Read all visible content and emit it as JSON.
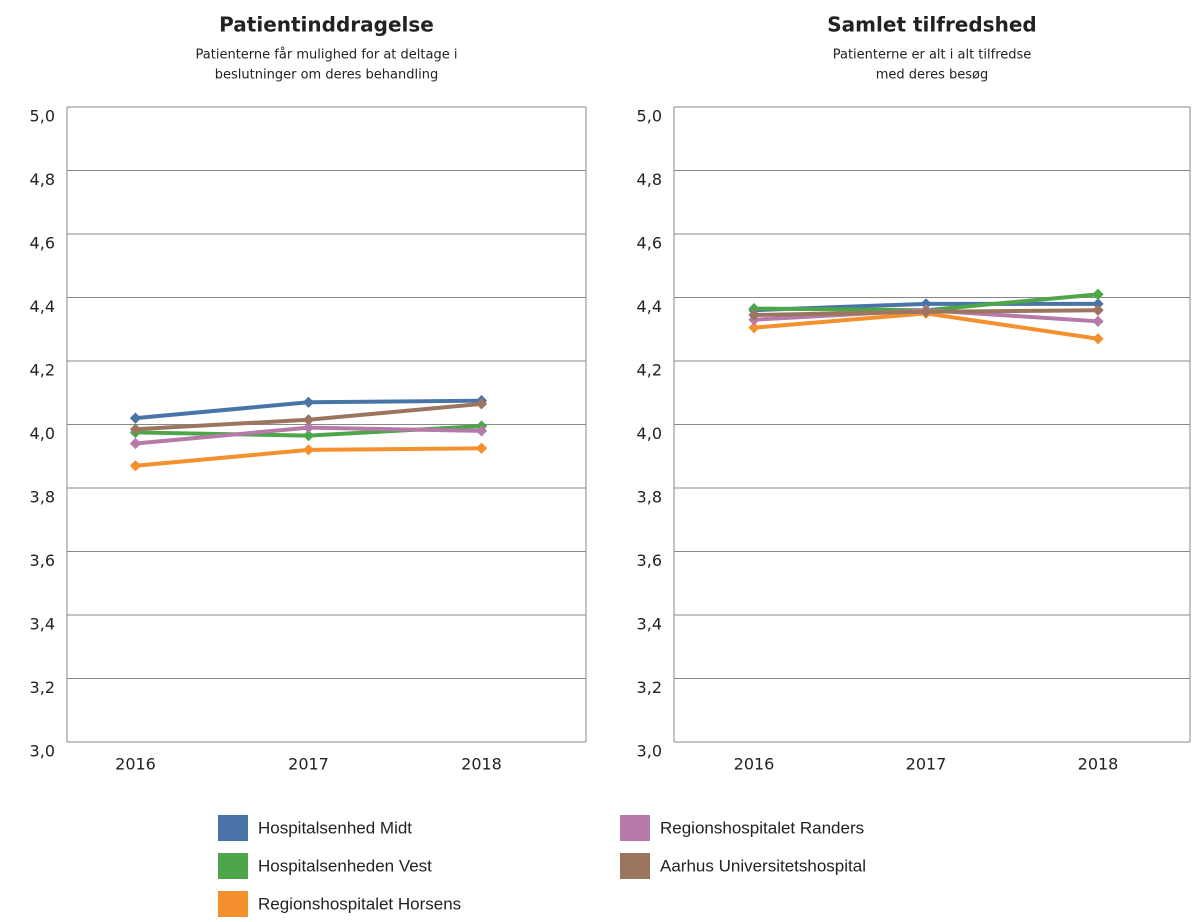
{
  "chart_data": [
    {
      "type": "line",
      "title": "Patientinddragelse",
      "subtitle": [
        "Patienterne får mulighed for at deltage i",
        "beslutninger om deres behandling"
      ],
      "categories": [
        "2016",
        "2017",
        "2018"
      ],
      "ylim": [
        3.0,
        5.0
      ],
      "yticks": [
        {
          "value": 3.0,
          "label": "3,0"
        },
        {
          "value": 3.2,
          "label": "3,2"
        },
        {
          "value": 3.4,
          "label": "3,4"
        },
        {
          "value": 3.6,
          "label": "3,6"
        },
        {
          "value": 3.8,
          "label": "3,8"
        },
        {
          "value": 4.0,
          "label": "4,0"
        },
        {
          "value": 4.2,
          "label": "4,2"
        },
        {
          "value": 4.4,
          "label": "4,4"
        },
        {
          "value": 4.6,
          "label": "4,6"
        },
        {
          "value": 4.8,
          "label": "4,8"
        },
        {
          "value": 5.0,
          "label": "5,0"
        }
      ],
      "grid": true,
      "series": [
        {
          "name": "Hospitalsenhed Midt",
          "color": "#4a74a8",
          "values": [
            4.02,
            4.07,
            4.075
          ]
        },
        {
          "name": "Hospitalsenheden Vest",
          "color": "#4ea64a",
          "values": [
            3.975,
            3.965,
            3.995
          ]
        },
        {
          "name": "Regionshospitalet Horsens",
          "color": "#f4912e",
          "values": [
            3.87,
            3.92,
            3.925
          ]
        },
        {
          "name": "Regionshospitalet Randers",
          "color": "#b57aa8",
          "values": [
            3.94,
            3.99,
            3.98
          ]
        },
        {
          "name": "Aarhus Universitetshospital",
          "color": "#9c7560",
          "values": [
            3.985,
            4.015,
            4.065
          ]
        }
      ]
    },
    {
      "type": "line",
      "title": "Samlet tilfredshed",
      "subtitle": [
        "Patienterne er alt i alt tilfredse",
        "med deres besøg"
      ],
      "categories": [
        "2016",
        "2017",
        "2018"
      ],
      "ylim": [
        3.0,
        5.0
      ],
      "yticks": [
        {
          "value": 3.0,
          "label": "3,0"
        },
        {
          "value": 3.2,
          "label": "3,2"
        },
        {
          "value": 3.4,
          "label": "3,4"
        },
        {
          "value": 3.6,
          "label": "3,6"
        },
        {
          "value": 3.8,
          "label": "3,8"
        },
        {
          "value": 4.0,
          "label": "4,0"
        },
        {
          "value": 4.2,
          "label": "4,2"
        },
        {
          "value": 4.4,
          "label": "4,4"
        },
        {
          "value": 4.6,
          "label": "4,6"
        },
        {
          "value": 4.8,
          "label": "4,8"
        },
        {
          "value": 5.0,
          "label": "5,0"
        }
      ],
      "grid": true,
      "series": [
        {
          "name": "Hospitalsenhed Midt",
          "color": "#4a74a8",
          "values": [
            4.36,
            4.38,
            4.38
          ]
        },
        {
          "name": "Hospitalsenheden Vest",
          "color": "#4ea64a",
          "values": [
            4.365,
            4.36,
            4.41
          ]
        },
        {
          "name": "Regionshospitalet Horsens",
          "color": "#f4912e",
          "values": [
            4.305,
            4.35,
            4.27
          ]
        },
        {
          "name": "Regionshospitalet Randers",
          "color": "#b57aa8",
          "values": [
            4.33,
            4.36,
            4.325
          ]
        },
        {
          "name": "Aarhus Universitetshospital",
          "color": "#9c7560",
          "values": [
            4.345,
            4.355,
            4.36
          ]
        }
      ]
    }
  ]
}
